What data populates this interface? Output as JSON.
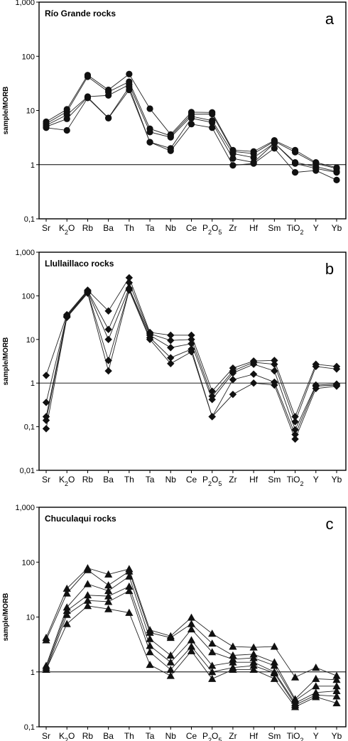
{
  "chart_data": [
    {
      "type": "line",
      "title": "Río Grande rocks",
      "panel_letter": "a",
      "ylabel": "sample/MORB",
      "yscale": "log",
      "ylim": [
        0.1,
        1000
      ],
      "yticks": [
        "0,1",
        "1",
        "10",
        "100",
        "1,000"
      ],
      "reference_line": 1,
      "marker": "circle",
      "categories": [
        "Sr",
        "K₂O",
        "Rb",
        "Ba",
        "Th",
        "Ta",
        "Nb",
        "Ce",
        "P₂O₅",
        "Zr",
        "Hf",
        "Sm",
        "TiO₂",
        "Y",
        "Yb"
      ],
      "series": [
        {
          "values": [
            6.2,
            10.5,
            45,
            24,
            47,
            10.8,
            3.6,
            9.3,
            9.2,
            1.85,
            1.75,
            2.8,
            1.85,
            1.1,
            0.88
          ]
        },
        {
          "values": [
            5.7,
            9.5,
            42,
            22,
            34,
            4.6,
            3.4,
            8.5,
            8.6,
            1.75,
            1.6,
            2.7,
            1.7,
            1.05,
            0.85
          ]
        },
        {
          "values": [
            5.3,
            8.3,
            18,
            19,
            30,
            4.0,
            3.2,
            7.8,
            6.5,
            1.6,
            1.35,
            2.5,
            1.1,
            0.92,
            0.75
          ]
        },
        {
          "values": [
            5.0,
            7.0,
            17.5,
            7.3,
            27,
            2.6,
            2.0,
            7.2,
            6.0,
            1.3,
            1.1,
            2.5,
            1.05,
            0.85,
            0.72
          ]
        },
        {
          "values": [
            4.8,
            4.3,
            17,
            7.2,
            24,
            2.6,
            1.8,
            5.6,
            4.8,
            0.97,
            1.05,
            2.0,
            0.72,
            0.78,
            0.52
          ]
        }
      ]
    },
    {
      "type": "line",
      "title": "Llullaillaco rocks",
      "panel_letter": "b",
      "ylabel": "sample/MORB",
      "yscale": "log",
      "ylim": [
        0.01,
        1000
      ],
      "yticks": [
        "0,01",
        "0,1",
        "1",
        "10",
        "100",
        "1,000"
      ],
      "reference_line": 1,
      "marker": "diamond",
      "categories": [
        "Sr",
        "K₂O",
        "Rb",
        "Ba",
        "Th",
        "Ta",
        "Nb",
        "Ce",
        "P₂O₅",
        "Zr",
        "Hf",
        "Sm",
        "TiO₂",
        "Y",
        "Yb"
      ],
      "series": [
        {
          "values": [
            1.5,
            37,
            135,
            45,
            260,
            14.5,
            12.5,
            12.5,
            0.65,
            2.2,
            3.2,
            3.3,
            0.17,
            2.7,
            2.4
          ]
        },
        {
          "values": [
            0.36,
            35,
            130,
            17,
            200,
            13.5,
            9.5,
            10,
            0.5,
            1.9,
            3.0,
            2.7,
            0.13,
            2.4,
            2.1
          ]
        },
        {
          "values": [
            0.17,
            34,
            125,
            10,
            150,
            12.5,
            6.5,
            8,
            0.42,
            1.7,
            2.7,
            1.9,
            0.085,
            0.9,
            0.95
          ]
        },
        {
          "values": [
            0.14,
            33,
            120,
            3.3,
            140,
            11,
            3.8,
            6,
            0.17,
            1.2,
            1.6,
            1.05,
            0.066,
            0.85,
            0.9
          ]
        },
        {
          "values": [
            0.09,
            32,
            115,
            1.9,
            135,
            10,
            2.8,
            5.2,
            0.17,
            0.55,
            1.0,
            0.9,
            0.052,
            0.75,
            0.85
          ]
        }
      ]
    },
    {
      "type": "line",
      "title": "Chuculaqui rocks",
      "panel_letter": "c",
      "ylabel": "sample/MORB",
      "yscale": "log",
      "ylim": [
        0.1,
        1000
      ],
      "yticks": [
        "0,1",
        "1",
        "10",
        "100",
        "1,000"
      ],
      "reference_line": 1,
      "marker": "triangle",
      "categories": [
        "Sr",
        "K₂O",
        "Rb",
        "Ba",
        "Th",
        "Ta",
        "Nb",
        "Ce",
        "P₂O₅",
        "Zr",
        "Hf",
        "Sm",
        "TiO₂",
        "Y",
        "Yb"
      ],
      "series": [
        {
          "values": [
            4.2,
            33,
            78,
            60,
            75,
            5.8,
            4.5,
            9.8,
            5.0,
            2.9,
            2.8,
            2.9,
            0.8,
            1.2,
            0.85
          ]
        },
        {
          "values": [
            3.8,
            27,
            72,
            38,
            68,
            5.2,
            4.2,
            7.5,
            3.3,
            2.0,
            2.1,
            1.5,
            0.32,
            0.75,
            0.72
          ]
        },
        {
          "values": [
            1.3,
            15,
            40,
            30,
            55,
            4.0,
            2.0,
            6.0,
            2.3,
            1.7,
            1.8,
            1.3,
            0.3,
            0.55,
            0.55
          ]
        },
        {
          "values": [
            1.2,
            13,
            25,
            24,
            36,
            3.0,
            1.5,
            3.8,
            1.3,
            1.5,
            1.5,
            1.0,
            0.27,
            0.42,
            0.45
          ]
        },
        {
          "values": [
            1.1,
            11,
            20,
            19,
            30,
            2.3,
            1.1,
            2.9,
            1.0,
            1.2,
            1.3,
            0.95,
            0.25,
            0.38,
            0.36
          ]
        },
        {
          "values": [
            1.1,
            7.5,
            16,
            14,
            12,
            1.35,
            0.85,
            2.4,
            0.75,
            1.1,
            1.1,
            0.75,
            0.23,
            0.35,
            0.27
          ]
        }
      ]
    }
  ]
}
